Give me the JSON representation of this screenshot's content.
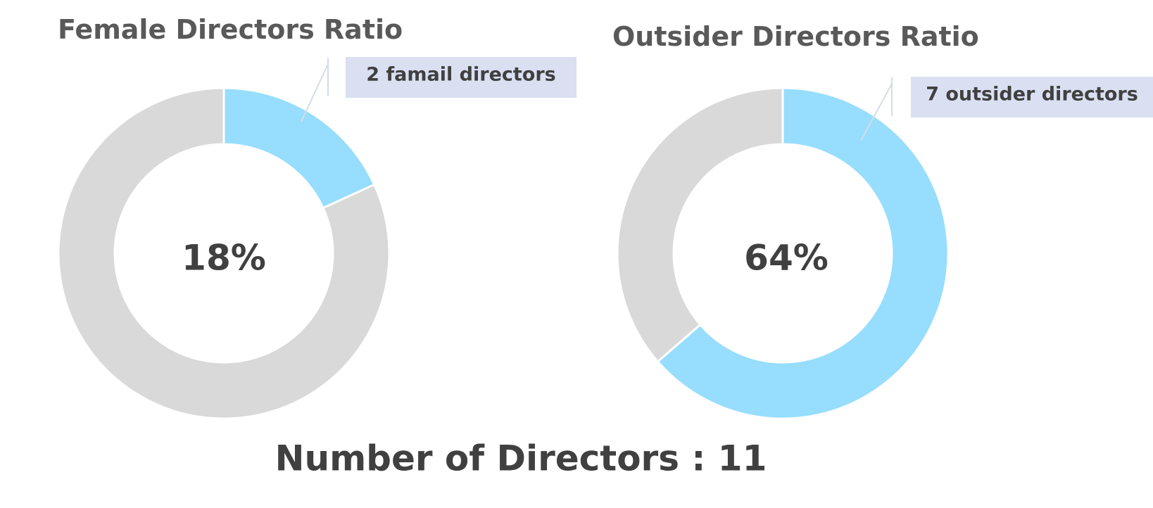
{
  "chart_data": [
    {
      "type": "pie",
      "title": "Female Directors Ratio",
      "center_label": "18%",
      "slices": [
        {
          "value": 2,
          "color": "#97DDFD"
        },
        {
          "value": 9,
          "color": "#D9D9D9"
        }
      ],
      "annotation": "2 famail directors"
    },
    {
      "type": "pie",
      "title": "Outsider Directors Ratio",
      "center_label": "64%",
      "slices": [
        {
          "value": 7,
          "color": "#97DDFD"
        },
        {
          "value": 4,
          "color": "#D9D9D9"
        }
      ],
      "annotation": "7 outsider directors"
    }
  ],
  "footer": {
    "label": "Number of Directors : 11"
  },
  "colors": {
    "highlight": "#97DDFD",
    "remainder": "#D9D9D9",
    "callout_bg": "#DAE0F2",
    "leader_line": "#D6DCE5"
  }
}
